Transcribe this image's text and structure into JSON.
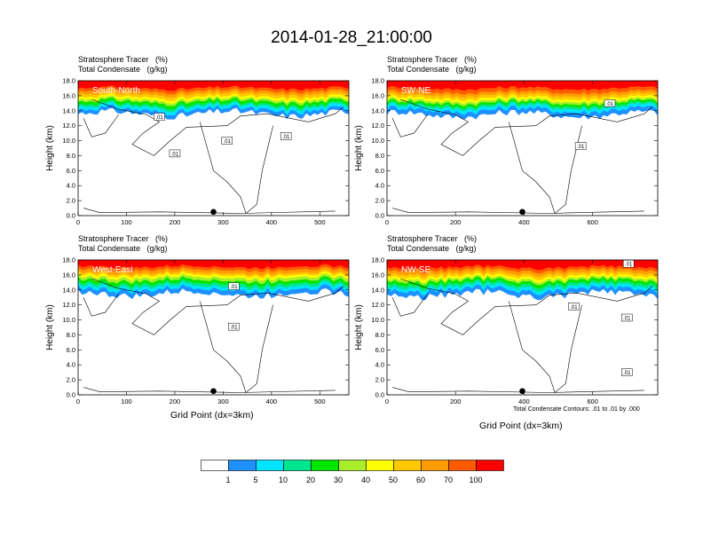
{
  "title": "2014-01-28_21:00:00",
  "panels": [
    {
      "id": "south-north",
      "field1": "Stratosphere Tracer   (%)",
      "field2": "Total Condensate   (g/kg)",
      "cross_section": "South-North",
      "x_ticks": [
        "0",
        "100",
        "200",
        "300",
        "400",
        "500"
      ],
      "x_tick_values": [
        0,
        100,
        200,
        300,
        400,
        500
      ],
      "x_max": 560,
      "contour_labels": [
        {
          "text": ".01",
          "x": 168,
          "y": 13.2
        },
        {
          "text": ".01",
          "x": 200,
          "y": 8.3
        },
        {
          "text": ".01",
          "x": 308,
          "y": 10.0
        },
        {
          "text": ".01",
          "x": 430,
          "y": 10.6
        }
      ],
      "marker_x": 280
    },
    {
      "id": "sw-ne",
      "field1": "Stratosphere Tracer   (%)",
      "field2": "Total Condensate   (g/kg)",
      "cross_section": "SW-NE",
      "x_ticks": [
        "0",
        "200",
        "400",
        "600"
      ],
      "x_tick_values": [
        0,
        200,
        400,
        600
      ],
      "x_max": 790,
      "contour_labels": [
        {
          "text": ".01",
          "x": 565,
          "y": 9.3
        },
        {
          "text": ".01",
          "x": 650,
          "y": 15.0
        }
      ],
      "marker_x": 395
    },
    {
      "id": "west-east",
      "field1": "Stratosphere Tracer   (%)",
      "field2": "Total Condensate   (g/kg)",
      "cross_section": "West-East",
      "x_ticks": [
        "0",
        "100",
        "200",
        "300",
        "400",
        "500"
      ],
      "x_tick_values": [
        0,
        100,
        200,
        300,
        400,
        500
      ],
      "x_max": 560,
      "contour_labels": [
        {
          "text": ".01",
          "x": 322,
          "y": 14.5
        },
        {
          "text": ".01",
          "x": 322,
          "y": 9.1
        }
      ],
      "marker_x": 280
    },
    {
      "id": "nw-se",
      "field1": "Stratosphere Tracer   (%)",
      "field2": "Total Condensate   (g/kg)",
      "cross_section": "NW-SE",
      "x_ticks": [
        "0",
        "200",
        "400",
        "600"
      ],
      "x_tick_values": [
        0,
        200,
        400,
        600
      ],
      "x_max": 790,
      "contour_labels": [
        {
          "text": ".01",
          "x": 545,
          "y": 11.8
        },
        {
          "text": ".01",
          "x": 700,
          "y": 10.3
        },
        {
          "text": ".01",
          "x": 700,
          "y": 3.0
        },
        {
          "text": ".01",
          "x": 705,
          "y": 17.5
        }
      ],
      "marker_x": 395
    }
  ],
  "y_axis": {
    "label": "Height (km)",
    "ticks": [
      "0.0",
      "2.0",
      "4.0",
      "6.0",
      "8.0",
      "10.0",
      "12.0",
      "14.0",
      "16.0",
      "18.0"
    ],
    "tick_values": [
      0,
      2,
      4,
      6,
      8,
      10,
      12,
      14,
      16,
      18
    ],
    "min": 0,
    "max": 18
  },
  "x_axis_label": "Grid Point (dx=3km)",
  "contour_note": "Total Condensate Contours: .01 to .01 by .000",
  "colorbar": {
    "colors": [
      "#ffffff",
      "#1e90ff",
      "#00e5ff",
      "#00e68f",
      "#00e600",
      "#a8ee2a",
      "#ffff00",
      "#ffc800",
      "#ff9c00",
      "#ff5a00",
      "#ff0000"
    ],
    "labels": [
      "1",
      "5",
      "10",
      "20",
      "30",
      "40",
      "50",
      "60",
      "70",
      "100"
    ]
  },
  "chart_data": [
    {
      "type": "heatmap",
      "title": "South-North",
      "series_names": [
        "Stratosphere Tracer (%)",
        "Total Condensate (g/kg)"
      ],
      "x_range": [
        0,
        560
      ],
      "y_range": [
        0,
        18
      ],
      "tracer_top_km": 18.0,
      "tracer_bands": [
        {
          "value": 100,
          "bottom_km": 17.0
        },
        {
          "value": 70,
          "bottom_km": 16.6
        },
        {
          "value": 60,
          "bottom_km": 16.2
        },
        {
          "value": 50,
          "bottom_km": 15.8
        },
        {
          "value": 40,
          "bottom_km": 15.5
        },
        {
          "value": 30,
          "bottom_km": 15.2
        },
        {
          "value": 20,
          "bottom_km": 14.8
        },
        {
          "value": 10,
          "bottom_km": 14.5
        },
        {
          "value": 5,
          "bottom_km": 14.1
        },
        {
          "value": 1,
          "bottom_km": 13.6
        }
      ],
      "condensate_contour_level": 0.01
    },
    {
      "type": "heatmap",
      "title": "SW-NE",
      "series_names": [
        "Stratosphere Tracer (%)",
        "Total Condensate (g/kg)"
      ],
      "x_range": [
        0,
        790
      ],
      "y_range": [
        0,
        18
      ],
      "tracer_top_km": 18.0,
      "tracer_bands": [
        {
          "value": 100,
          "bottom_km": 17.0
        },
        {
          "value": 70,
          "bottom_km": 16.5
        },
        {
          "value": 60,
          "bottom_km": 16.1
        },
        {
          "value": 50,
          "bottom_km": 15.7
        },
        {
          "value": 40,
          "bottom_km": 15.4
        },
        {
          "value": 30,
          "bottom_km": 15.1
        },
        {
          "value": 20,
          "bottom_km": 14.8
        },
        {
          "value": 10,
          "bottom_km": 14.5
        },
        {
          "value": 5,
          "bottom_km": 14.1
        },
        {
          "value": 1,
          "bottom_km": 13.5
        }
      ],
      "condensate_contour_level": 0.01
    },
    {
      "type": "heatmap",
      "title": "West-East",
      "series_names": [
        "Stratosphere Tracer (%)",
        "Total Condensate (g/kg)"
      ],
      "x_range": [
        0,
        560
      ],
      "y_range": [
        0,
        18
      ],
      "tracer_top_km": 18.0,
      "tracer_bands": [
        {
          "value": 100,
          "bottom_km": 17.1
        },
        {
          "value": 70,
          "bottom_km": 16.7
        },
        {
          "value": 60,
          "bottom_km": 16.3
        },
        {
          "value": 50,
          "bottom_km": 16.0
        },
        {
          "value": 40,
          "bottom_km": 15.7
        },
        {
          "value": 30,
          "bottom_km": 15.3
        },
        {
          "value": 20,
          "bottom_km": 14.9
        },
        {
          "value": 10,
          "bottom_km": 14.5
        },
        {
          "value": 5,
          "bottom_km": 14.1
        },
        {
          "value": 1,
          "bottom_km": 13.5
        }
      ],
      "condensate_contour_level": 0.01
    },
    {
      "type": "heatmap",
      "title": "NW-SE",
      "series_names": [
        "Stratosphere Tracer (%)",
        "Total Condensate (g/kg)"
      ],
      "x_range": [
        0,
        790
      ],
      "y_range": [
        0,
        18
      ],
      "tracer_top_km": 18.0,
      "tracer_bands": [
        {
          "value": 100,
          "bottom_km": 17.0
        },
        {
          "value": 70,
          "bottom_km": 16.6
        },
        {
          "value": 60,
          "bottom_km": 16.2
        },
        {
          "value": 50,
          "bottom_km": 15.8
        },
        {
          "value": 40,
          "bottom_km": 15.5
        },
        {
          "value": 30,
          "bottom_km": 15.2
        },
        {
          "value": 20,
          "bottom_km": 14.8
        },
        {
          "value": 10,
          "bottom_km": 14.4
        },
        {
          "value": 5,
          "bottom_km": 14.0
        },
        {
          "value": 1,
          "bottom_km": 13.4
        }
      ],
      "condensate_contour_level": 0.01
    }
  ]
}
